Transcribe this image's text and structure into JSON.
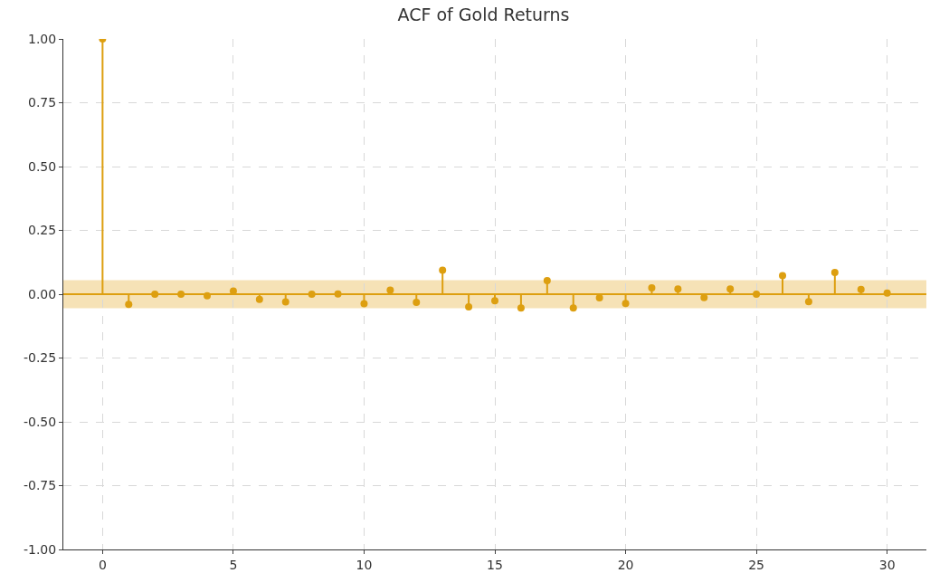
{
  "chart_data": {
    "type": "lollipop",
    "title": "ACF of Gold Returns",
    "x": [
      0,
      1,
      2,
      3,
      4,
      5,
      6,
      7,
      8,
      9,
      10,
      11,
      12,
      13,
      14,
      15,
      16,
      17,
      18,
      19,
      20,
      21,
      22,
      23,
      24,
      25,
      26,
      27,
      28,
      29,
      30
    ],
    "values": [
      1,
      -0.04,
      0,
      0,
      -0.006,
      0.012,
      -0.02,
      -0.03,
      0,
      0.001,
      -0.037,
      0.016,
      -0.032,
      0.094,
      -0.05,
      -0.026,
      -0.054,
      0.053,
      -0.054,
      -0.014,
      -0.036,
      0.025,
      0.02,
      -0.013,
      0.02,
      0,
      0.073,
      -0.029,
      0.085,
      0.019,
      0.004
    ],
    "color": "#dd9f10",
    "xlim": [
      -1.5,
      31.5
    ],
    "xticks": [
      0,
      5,
      10,
      15,
      20,
      25,
      30
    ],
    "ylim": [
      -1,
      1
    ],
    "yticks": [
      {
        "value": -1,
        "label": "-1.00"
      },
      {
        "value": -0.75,
        "label": "-0.75"
      },
      {
        "value": -0.5,
        "label": "-0.50"
      },
      {
        "value": -0.25,
        "label": "-0.25"
      },
      {
        "value": 0,
        "label": "0.00"
      },
      {
        "value": 0.25,
        "label": "0.25"
      },
      {
        "value": 0.5,
        "label": "0.50"
      },
      {
        "value": 0.75,
        "label": "0.75"
      },
      {
        "value": 1,
        "label": "1.00"
      }
    ],
    "ref_lines": [
      {
        "axis": "y",
        "value": 0,
        "color": "#dd9f10"
      }
    ],
    "bands": [
      {
        "axis": "y",
        "from": -0.055,
        "to": 0.055,
        "color": "#f6e2b6"
      }
    ],
    "grid": true,
    "marker": "circle"
  }
}
